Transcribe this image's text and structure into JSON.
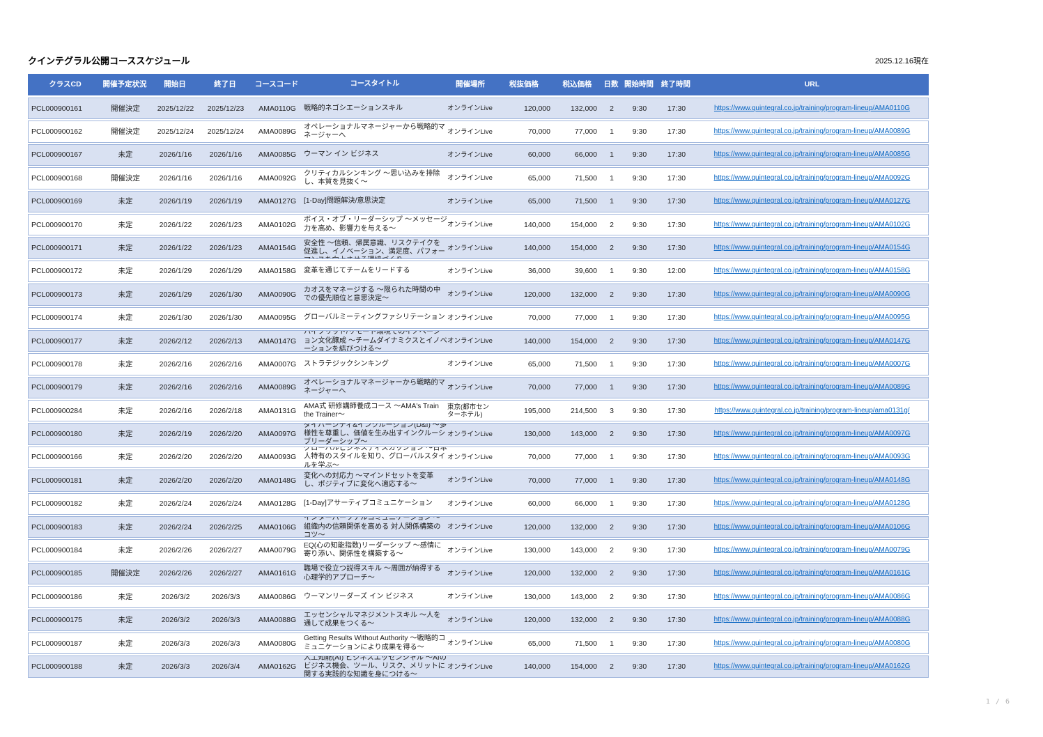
{
  "page": {
    "title": "クインテグラル公開コーススケジュール",
    "as_of": "2025.12.16現在",
    "page_indicator": "1 / 6"
  },
  "colors": {
    "header_bg": "#4472C4",
    "header_text": "#FFFFFF",
    "row_alt_bg": "#D9E1F2",
    "row_border": "#9FB5DC",
    "link": "#0563C1"
  },
  "table": {
    "columns": [
      "クラスCD",
      "開催予定状況",
      "開始日",
      "終了日",
      "コースコード",
      "コースタイトル",
      "開催場所",
      "税抜価格",
      "税込価格",
      "日数",
      "開始時間",
      "終了時間",
      "URL"
    ],
    "rows": [
      {
        "class_cd": "PCL000900161",
        "status": "開催決定",
        "start_date": "2025/12/22",
        "end_date": "2025/12/23",
        "course_code": "AMA0110G",
        "title": "戦略的ネゴシエーションスキル",
        "location": "オンラインLive",
        "price_excl": "120,000",
        "price_incl": "132,000",
        "days": "2",
        "start_time": "9:30",
        "end_time": "17:30",
        "url": "https://www.quintegral.co.jp/training/program-lineup/AMA0110G"
      },
      {
        "class_cd": "PCL000900162",
        "status": "開催決定",
        "start_date": "2025/12/24",
        "end_date": "2025/12/24",
        "course_code": "AMA0089G",
        "title": "オペレーショナルマネージャーから戦略的マネージャーへ",
        "location": "オンラインLive",
        "price_excl": "70,000",
        "price_incl": "77,000",
        "days": "1",
        "start_time": "9:30",
        "end_time": "17:30",
        "url": "https://www.quintegral.co.jp/training/program-lineup/AMA0089G"
      },
      {
        "class_cd": "PCL000900167",
        "status": "未定",
        "start_date": "2026/1/16",
        "end_date": "2026/1/16",
        "course_code": "AMA0085G",
        "title": "ウーマン イン ビジネス",
        "location": "オンラインLive",
        "price_excl": "60,000",
        "price_incl": "66,000",
        "days": "1",
        "start_time": "9:30",
        "end_time": "17:30",
        "url": "https://www.quintegral.co.jp/training/program-lineup/AMA0085G"
      },
      {
        "class_cd": "PCL000900168",
        "status": "開催決定",
        "start_date": "2026/1/16",
        "end_date": "2026/1/16",
        "course_code": "AMA0092G",
        "title": "クリティカルシンキング ～思い込みを排除し、本質を見抜く～",
        "location": "オンラインLive",
        "price_excl": "65,000",
        "price_incl": "71,500",
        "days": "1",
        "start_time": "9:30",
        "end_time": "17:30",
        "url": "https://www.quintegral.co.jp/training/program-lineup/AMA0092G"
      },
      {
        "class_cd": "PCL000900169",
        "status": "未定",
        "start_date": "2026/1/19",
        "end_date": "2026/1/19",
        "course_code": "AMA0127G",
        "title": "[1-Day]問題解決/意思決定",
        "location": "オンラインLive",
        "price_excl": "65,000",
        "price_incl": "71,500",
        "days": "1",
        "start_time": "9:30",
        "end_time": "17:30",
        "url": "https://www.quintegral.co.jp/training/program-lineup/AMA0127G"
      },
      {
        "class_cd": "PCL000900170",
        "status": "未定",
        "start_date": "2026/1/22",
        "end_date": "2026/1/23",
        "course_code": "AMA0102G",
        "title": "ボイス・オブ・リーダーシップ ～メッセージ力を高め、影響力を与える～",
        "location": "オンラインLive",
        "price_excl": "140,000",
        "price_incl": "154,000",
        "days": "2",
        "start_time": "9:30",
        "end_time": "17:30",
        "url": "https://www.quintegral.co.jp/training/program-lineup/AMA0102G"
      },
      {
        "class_cd": "PCL000900171",
        "status": "未定",
        "start_date": "2026/1/22",
        "end_date": "2026/1/23",
        "course_code": "AMA0154G",
        "title": "ハイパフォーマンスチームの必須条件 心理的安全性 ～信頼、帰属意識、リスクテイクを促進し、イノベーション、満足度、パフォーマンスを向上させる環境づくり",
        "location": "オンラインLive",
        "price_excl": "140,000",
        "price_incl": "154,000",
        "days": "2",
        "start_time": "9:30",
        "end_time": "17:30",
        "url": "https://www.quintegral.co.jp/training/program-lineup/AMA0154G"
      },
      {
        "class_cd": "PCL000900172",
        "status": "未定",
        "start_date": "2026/1/29",
        "end_date": "2026/1/29",
        "course_code": "AMA0158G",
        "title": "変革を通じてチームをリードする",
        "location": "オンラインLive",
        "price_excl": "36,000",
        "price_incl": "39,600",
        "days": "1",
        "start_time": "9:30",
        "end_time": "12:00",
        "url": "https://www.quintegral.co.jp/training/program-lineup/AMA0158G"
      },
      {
        "class_cd": "PCL000900173",
        "status": "未定",
        "start_date": "2026/1/29",
        "end_date": "2026/1/30",
        "course_code": "AMA0090G",
        "title": "カオスをマネージする ～限られた時間の中での優先順位と意思決定～",
        "location": "オンラインLive",
        "price_excl": "120,000",
        "price_incl": "132,000",
        "days": "2",
        "start_time": "9:30",
        "end_time": "17:30",
        "url": "https://www.quintegral.co.jp/training/program-lineup/AMA0090G"
      },
      {
        "class_cd": "PCL000900174",
        "status": "未定",
        "start_date": "2026/1/30",
        "end_date": "2026/1/30",
        "course_code": "AMA0095G",
        "title": "グローバルミーティングファシリテーション",
        "location": "オンラインLive",
        "price_excl": "70,000",
        "price_incl": "77,000",
        "days": "1",
        "start_time": "9:30",
        "end_time": "17:30",
        "url": "https://www.quintegral.co.jp/training/program-lineup/AMA0095G"
      },
      {
        "class_cd": "PCL000900177",
        "status": "未定",
        "start_date": "2026/2/12",
        "end_date": "2026/2/13",
        "course_code": "AMA0147G",
        "title": "ハイブリッド/リモート環境でのイノベーション文化醸成 ～チームダイナミクスとイノベーションを結びつける～",
        "location": "オンラインLive",
        "price_excl": "140,000",
        "price_incl": "154,000",
        "days": "2",
        "start_time": "9:30",
        "end_time": "17:30",
        "url": "https://www.quintegral.co.jp/training/program-lineup/AMA0147G"
      },
      {
        "class_cd": "PCL000900178",
        "status": "未定",
        "start_date": "2026/2/16",
        "end_date": "2026/2/16",
        "course_code": "AMA0007G",
        "title": "ストラテジックシンキング",
        "location": "オンラインLive",
        "price_excl": "65,000",
        "price_incl": "71,500",
        "days": "1",
        "start_time": "9:30",
        "end_time": "17:30",
        "url": "https://www.quintegral.co.jp/training/program-lineup/AMA0007G"
      },
      {
        "class_cd": "PCL000900179",
        "status": "未定",
        "start_date": "2026/2/16",
        "end_date": "2026/2/16",
        "course_code": "AMA0089G",
        "title": "オペレーショナルマネージャーから戦略的マネージャーへ",
        "location": "オンラインLive",
        "price_excl": "70,000",
        "price_incl": "77,000",
        "days": "1",
        "start_time": "9:30",
        "end_time": "17:30",
        "url": "https://www.quintegral.co.jp/training/program-lineup/AMA0089G"
      },
      {
        "class_cd": "PCL000900284",
        "status": "未定",
        "start_date": "2026/2/16",
        "end_date": "2026/2/18",
        "course_code": "AMA0131G",
        "title": "AMA式 研修講師養成コース ～AMA's Train the Trainer～",
        "location": "東京(都市センターホテル)",
        "price_excl": "195,000",
        "price_incl": "214,500",
        "days": "3",
        "start_time": "9:30",
        "end_time": "17:30",
        "url": "https://www.quintegral.co.jp/training/program-lineup/ama0131g/"
      },
      {
        "class_cd": "PCL000900180",
        "status": "未定",
        "start_date": "2026/2/19",
        "end_date": "2026/2/20",
        "course_code": "AMA0097G",
        "title": "ダイバーシティ&インクルージョン(D&I) ～多様性を尊重し、価値を生み出すインクルーシブリーダーシップ～",
        "location": "オンラインLive",
        "price_excl": "130,000",
        "price_incl": "143,000",
        "days": "2",
        "start_time": "9:30",
        "end_time": "17:30",
        "url": "https://www.quintegral.co.jp/training/program-lineup/AMA0097G"
      },
      {
        "class_cd": "PCL000900166",
        "status": "未定",
        "start_date": "2026/2/20",
        "end_date": "2026/2/20",
        "course_code": "AMA0093G",
        "title": "グローバルビジネスディスカッション ～日本人特有のスタイルを知り、グローバルスタイルを学ぶ～",
        "location": "オンラインLive",
        "price_excl": "70,000",
        "price_incl": "77,000",
        "days": "1",
        "start_time": "9:30",
        "end_time": "17:30",
        "url": "https://www.quintegral.co.jp/training/program-lineup/AMA0093G"
      },
      {
        "class_cd": "PCL000900181",
        "status": "未定",
        "start_date": "2026/2/20",
        "end_date": "2026/2/20",
        "course_code": "AMA0148G",
        "title": "変化への対応力 ～マインドセットを変革し、ポジティブに変化へ適応する～",
        "location": "オンラインLive",
        "price_excl": "70,000",
        "price_incl": "77,000",
        "days": "1",
        "start_time": "9:30",
        "end_time": "17:30",
        "url": "https://www.quintegral.co.jp/training/program-lineup/AMA0148G"
      },
      {
        "class_cd": "PCL000900182",
        "status": "未定",
        "start_date": "2026/2/24",
        "end_date": "2026/2/24",
        "course_code": "AMA0128G",
        "title": "[1-Day]アサーティブコミュニケーション",
        "location": "オンラインLive",
        "price_excl": "60,000",
        "price_incl": "66,000",
        "days": "1",
        "start_time": "9:30",
        "end_time": "17:30",
        "url": "https://www.quintegral.co.jp/training/program-lineup/AMA0128G"
      },
      {
        "class_cd": "PCL000900183",
        "status": "未定",
        "start_date": "2026/2/24",
        "end_date": "2026/2/25",
        "course_code": "AMA0106G",
        "title": "インターパーソナルコミュニケーション ～組織内の信頼関係を高める 対人関係構築のコツ～",
        "location": "オンラインLive",
        "price_excl": "120,000",
        "price_incl": "132,000",
        "days": "2",
        "start_time": "9:30",
        "end_time": "17:30",
        "url": "https://www.quintegral.co.jp/training/program-lineup/AMA0106G"
      },
      {
        "class_cd": "PCL000900184",
        "status": "未定",
        "start_date": "2026/2/26",
        "end_date": "2026/2/27",
        "course_code": "AMA0079G",
        "title": "EQ(心の知能指数)リーダーシップ ～感情に寄り添い、関係性を構築する～",
        "location": "オンラインLive",
        "price_excl": "130,000",
        "price_incl": "143,000",
        "days": "2",
        "start_time": "9:30",
        "end_time": "17:30",
        "url": "https://www.quintegral.co.jp/training/program-lineup/AMA0079G"
      },
      {
        "class_cd": "PCL000900185",
        "status": "開催決定",
        "start_date": "2026/2/26",
        "end_date": "2026/2/27",
        "course_code": "AMA0161G",
        "title": "職場で役立つ説得スキル ～周囲が納得する心理学的アプローチ～",
        "location": "オンラインLive",
        "price_excl": "120,000",
        "price_incl": "132,000",
        "days": "2",
        "start_time": "9:30",
        "end_time": "17:30",
        "url": "https://www.quintegral.co.jp/training/program-lineup/AMA0161G"
      },
      {
        "class_cd": "PCL000900186",
        "status": "未定",
        "start_date": "2026/3/2",
        "end_date": "2026/3/3",
        "course_code": "AMA0086G",
        "title": "ウーマンリーダーズ イン ビジネス",
        "location": "オンラインLive",
        "price_excl": "130,000",
        "price_incl": "143,000",
        "days": "2",
        "start_time": "9:30",
        "end_time": "17:30",
        "url": "https://www.quintegral.co.jp/training/program-lineup/AMA0086G"
      },
      {
        "class_cd": "PCL000900175",
        "status": "未定",
        "start_date": "2026/3/2",
        "end_date": "2026/3/3",
        "course_code": "AMA0088G",
        "title": "エッセンシャルマネジメントスキル ～人を通して成果をつくる～",
        "location": "オンラインLive",
        "price_excl": "120,000",
        "price_incl": "132,000",
        "days": "2",
        "start_time": "9:30",
        "end_time": "17:30",
        "url": "https://www.quintegral.co.jp/training/program-lineup/AMA0088G"
      },
      {
        "class_cd": "PCL000900187",
        "status": "未定",
        "start_date": "2026/3/3",
        "end_date": "2026/3/3",
        "course_code": "AMA0080G",
        "title": "Getting Results Without Authority ～戦略的コミュニケーションにより成果を得る～",
        "location": "オンラインLive",
        "price_excl": "65,000",
        "price_incl": "71,500",
        "days": "1",
        "start_time": "9:30",
        "end_time": "17:30",
        "url": "https://www.quintegral.co.jp/training/program-lineup/AMA0080G"
      },
      {
        "class_cd": "PCL000900188",
        "status": "未定",
        "start_date": "2026/3/3",
        "end_date": "2026/3/4",
        "course_code": "AMA0162G",
        "title": "人工知能(AI) ビジネスエッセンシャル ～AIのビジネス機会、ツール、リスク、メリットに関する実践的な知識を身につける～",
        "location": "オンラインLive",
        "price_excl": "140,000",
        "price_incl": "154,000",
        "days": "2",
        "start_time": "9:30",
        "end_time": "17:30",
        "url": "https://www.quintegral.co.jp/training/program-lineup/AMA0162G"
      }
    ]
  }
}
